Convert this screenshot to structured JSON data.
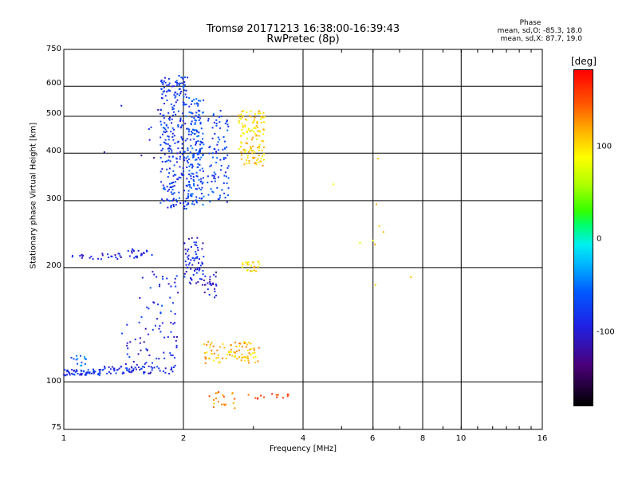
{
  "chart_data": {
    "type": "scatter",
    "title": "Tromsø 20171213 16:38:00-16:39:43",
    "subtitle": "RwPretec (8p)",
    "xlabel": "Frequency [MHz]",
    "ylabel": "Stationary phase Virtual Height [km]",
    "xscale": "log",
    "yscale": "log",
    "xlim": [
      1,
      16
    ],
    "ylim": [
      75,
      750
    ],
    "xticks": [
      "1",
      "2",
      "4",
      "6",
      "8",
      "10",
      "16"
    ],
    "xtick_values": [
      1,
      2,
      4,
      6,
      8,
      10,
      16
    ],
    "yticks": [
      "75",
      "100",
      "200",
      "300",
      "400",
      "500",
      "600",
      "750"
    ],
    "ytick_values": [
      75,
      100,
      200,
      300,
      400,
      500,
      600,
      750
    ],
    "grid": true,
    "phase_info": {
      "title": "Phase",
      "line_o": "mean, sd,O: -85.3, 18.0",
      "line_x": "mean, sd,X:  87.7, 19.0"
    },
    "colorbar": {
      "label": "[deg]",
      "ticks": [
        "100",
        "0",
        "-100"
      ],
      "tick_values": [
        100,
        0,
        -100
      ],
      "range": [
        -180,
        180
      ]
    },
    "clusters": [
      {
        "x": [
          1.0,
          1.25
        ],
        "y": [
          104,
          108
        ],
        "phase": -85,
        "n": 60
      },
      {
        "x": [
          1.0,
          1.15
        ],
        "y": [
          110,
          118
        ],
        "phase": -50,
        "n": 14
      },
      {
        "x": [
          1.25,
          1.9
        ],
        "y": [
          105,
          110
        ],
        "phase": -88,
        "n": 70
      },
      {
        "x": [
          1.4,
          1.95
        ],
        "y": [
          110,
          145
        ],
        "phase": -95,
        "n": 50
      },
      {
        "x": [
          1.05,
          1.4
        ],
        "y": [
          210,
          218
        ],
        "phase": -100,
        "n": 25
      },
      {
        "x": [
          1.45,
          1.7
        ],
        "y": [
          212,
          224
        ],
        "phase": -90,
        "n": 22
      },
      {
        "x": [
          1.55,
          1.95
        ],
        "y": [
          140,
          200
        ],
        "phase": -85,
        "n": 35
      },
      {
        "x": [
          1.75,
          2.05
        ],
        "y": [
          285,
          640
        ],
        "phase": -80,
        "n": 260
      },
      {
        "x": [
          2.05,
          2.25
        ],
        "y": [
          290,
          560
        ],
        "phase": -70,
        "n": 180
      },
      {
        "x": [
          2.3,
          2.6
        ],
        "y": [
          295,
          520
        ],
        "phase": -75,
        "n": 90
      },
      {
        "x": [
          2.0,
          2.25
        ],
        "y": [
          180,
          240
        ],
        "phase": -95,
        "n": 70
      },
      {
        "x": [
          2.25,
          2.45
        ],
        "y": [
          165,
          195
        ],
        "phase": -105,
        "n": 25
      },
      {
        "x": [
          2.75,
          3.2
        ],
        "y": [
          370,
          520
        ],
        "phase": 100,
        "n": 130
      },
      {
        "x": [
          2.8,
          3.15
        ],
        "y": [
          195,
          208
        ],
        "phase": 95,
        "n": 25
      },
      {
        "x": [
          2.25,
          3.1
        ],
        "y": [
          112,
          128
        ],
        "phase": 110,
        "n": 90
      },
      {
        "x": [
          2.3,
          2.7
        ],
        "y": [
          85,
          95
        ],
        "phase": 130,
        "n": 20
      },
      {
        "x": [
          2.9,
          3.9
        ],
        "y": [
          90,
          93
        ],
        "phase": 150,
        "n": 14
      },
      {
        "x": [
          1.25,
          1.8
        ],
        "y": [
          380,
          600
        ],
        "phase": -100,
        "n": 10
      },
      {
        "x": [
          4.2,
          7.5
        ],
        "y": [
          180,
          420
        ],
        "phase": 100,
        "n": 10
      }
    ]
  }
}
